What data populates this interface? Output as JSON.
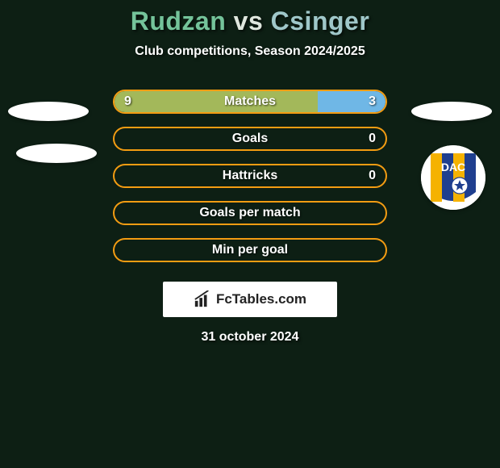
{
  "background_color": "#0d1f14",
  "title": {
    "player_a": "Rudzan",
    "vs": "vs",
    "player_b": "Csinger",
    "color_a": "#74c39a",
    "color_vs": "#dfe7de",
    "color_b": "#9fc7c9"
  },
  "subtitle": {
    "text": "Club competitions, Season 2024/2025",
    "color": "#ffffff"
  },
  "bar_style": {
    "track_border_color": "#f39c12",
    "left_fill": "#a3b85a",
    "right_fill": "#6fb7e6",
    "empty_fill": "transparent"
  },
  "rows": [
    {
      "label": "Matches",
      "left": "9",
      "right": "3",
      "left_pct": 75
    },
    {
      "label": "Goals",
      "left": "",
      "right": "0",
      "left_pct": 0
    },
    {
      "label": "Hattricks",
      "left": "",
      "right": "0",
      "left_pct": 0
    },
    {
      "label": "Goals per match",
      "left": "",
      "right": "",
      "left_pct": 0
    },
    {
      "label": "Min per goal",
      "left": "",
      "right": "",
      "left_pct": 0
    }
  ],
  "brand": {
    "text": "FcTables.com"
  },
  "date": "31 october 2024",
  "crest_colors": {
    "ring": "#ffffff",
    "blue": "#1f3f8f",
    "yellow": "#f5b200",
    "text": "#ffffff",
    "ball": "#ffffff"
  }
}
